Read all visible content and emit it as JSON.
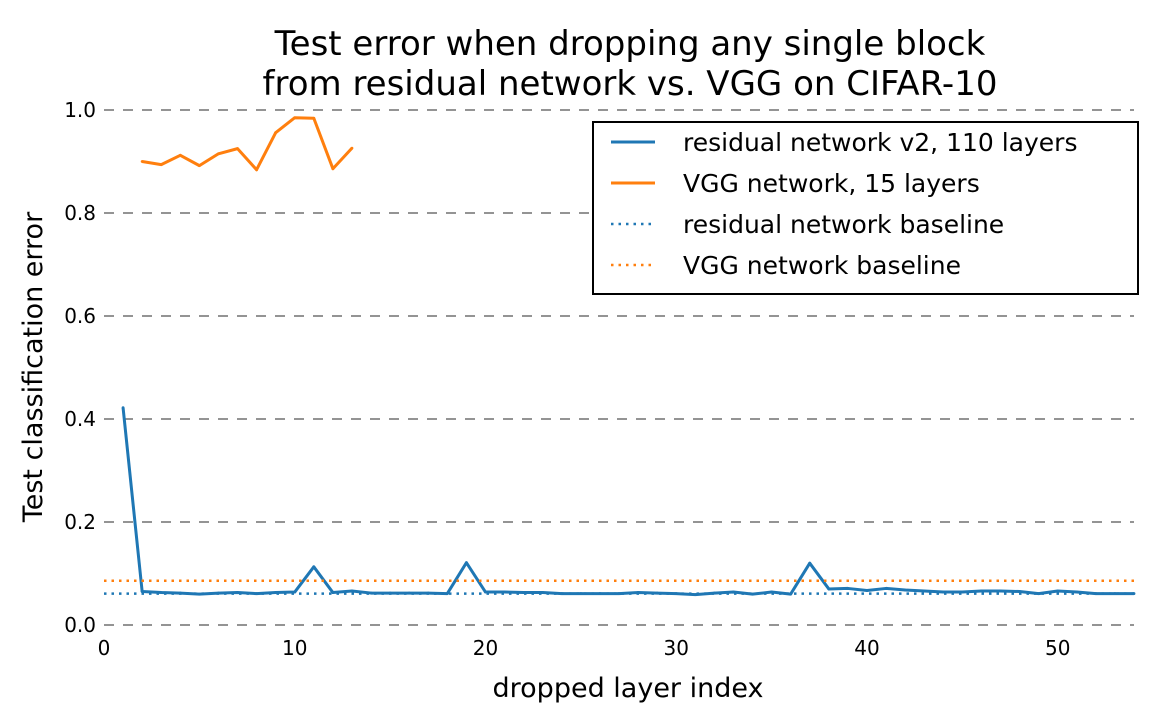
{
  "chart_data": {
    "type": "line",
    "title": "Test error when dropping any single block",
    "subtitle": "from residual network vs. VGG on CIFAR-10",
    "xlabel": "dropped layer index",
    "ylabel": "Test classification error",
    "xlim": [
      0,
      54
    ],
    "ylim": [
      0.0,
      1.0
    ],
    "xticks": [
      0,
      10,
      20,
      30,
      40,
      50
    ],
    "xtick_labels": [
      "0",
      "10",
      "20",
      "30",
      "40",
      "50"
    ],
    "yticks": [
      0.0,
      0.2,
      0.4,
      0.6,
      0.8,
      1.0
    ],
    "ytick_labels": [
      "0.0",
      "0.2",
      "0.4",
      "0.6",
      "0.8",
      "1.0"
    ],
    "grid": "horizontal dashed",
    "legend_position": "top-right",
    "series": [
      {
        "name": "residual network v2, 110 layers",
        "style": "solid",
        "color": "#1f77b4",
        "x": [
          1,
          2,
          3,
          4,
          5,
          6,
          7,
          8,
          9,
          10,
          11,
          12,
          13,
          14,
          15,
          16,
          17,
          18,
          19,
          20,
          21,
          22,
          23,
          24,
          25,
          26,
          27,
          28,
          29,
          30,
          31,
          32,
          33,
          34,
          35,
          36,
          37,
          38,
          39,
          40,
          41,
          42,
          43,
          44,
          45,
          46,
          47,
          48,
          49,
          50,
          51,
          52,
          53,
          54
        ],
        "values": [
          0.422,
          0.065,
          0.063,
          0.062,
          0.06,
          0.062,
          0.063,
          0.061,
          0.063,
          0.064,
          0.113,
          0.063,
          0.066,
          0.062,
          0.062,
          0.062,
          0.062,
          0.061,
          0.121,
          0.064,
          0.064,
          0.063,
          0.063,
          0.061,
          0.061,
          0.061,
          0.061,
          0.063,
          0.062,
          0.061,
          0.059,
          0.062,
          0.064,
          0.06,
          0.064,
          0.06,
          0.12,
          0.07,
          0.071,
          0.067,
          0.071,
          0.068,
          0.066,
          0.064,
          0.064,
          0.066,
          0.066,
          0.065,
          0.061,
          0.066,
          0.064,
          0.061,
          0.061,
          0.061
        ]
      },
      {
        "name": "VGG network, 15 layers",
        "style": "solid",
        "color": "#ff7f0e",
        "x": [
          2,
          3,
          4,
          5,
          6,
          7,
          8,
          9,
          10,
          11,
          12,
          13
        ],
        "values": [
          0.9,
          0.894,
          0.912,
          0.892,
          0.915,
          0.925,
          0.884,
          0.956,
          0.985,
          0.984,
          0.886,
          0.926
        ]
      },
      {
        "name": "residual network baseline",
        "style": "dotted",
        "color": "#1f77b4",
        "x": [
          0,
          54
        ],
        "values": [
          0.061,
          0.061
        ]
      },
      {
        "name": "VGG network baseline",
        "style": "dotted",
        "color": "#ff7f0e",
        "x": [
          0,
          54
        ],
        "values": [
          0.086,
          0.086
        ]
      }
    ]
  }
}
